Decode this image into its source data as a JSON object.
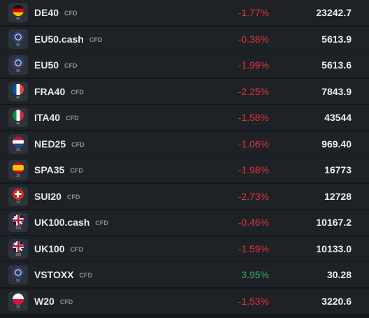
{
  "rows": [
    {
      "icon_label": "40",
      "symbol": "DE40",
      "tag": "CFD",
      "change": "-1.77%",
      "price": "23242.7"
    },
    {
      "icon_label": "50",
      "symbol": "EU50.cash",
      "tag": "CFD",
      "change": "-0.38%",
      "price": "5613.9"
    },
    {
      "icon_label": "50",
      "symbol": "EU50",
      "tag": "CFD",
      "change": "-1.99%",
      "price": "5613.6"
    },
    {
      "icon_label": "40",
      "symbol": "FRA40",
      "tag": "CFD",
      "change": "-2.25%",
      "price": "7843.9"
    },
    {
      "icon_label": "40",
      "symbol": "ITA40",
      "tag": "CFD",
      "change": "-1.58%",
      "price": "43544"
    },
    {
      "icon_label": "25",
      "symbol": "NED25",
      "tag": "CFD",
      "change": "-1.06%",
      "price": "969.40"
    },
    {
      "icon_label": "35",
      "symbol": "SPA35",
      "tag": "CFD",
      "change": "-1.98%",
      "price": "16773"
    },
    {
      "icon_label": "20",
      "symbol": "SUI20",
      "tag": "CFD",
      "change": "-2.73%",
      "price": "12728"
    },
    {
      "icon_label": "100",
      "symbol": "UK100.cash",
      "tag": "CFD",
      "change": "-0.46%",
      "price": "10167.2"
    },
    {
      "icon_label": "100",
      "symbol": "UK100",
      "tag": "CFD",
      "change": "-1.59%",
      "price": "10133.0"
    },
    {
      "icon_label": "50",
      "symbol": "VSTOXX",
      "tag": "CFD",
      "change": "3.95%",
      "price": "30.28"
    },
    {
      "icon_label": "20",
      "symbol": "W20",
      "tag": "CFD",
      "change": "-1.53%",
      "price": "3220.6"
    }
  ]
}
